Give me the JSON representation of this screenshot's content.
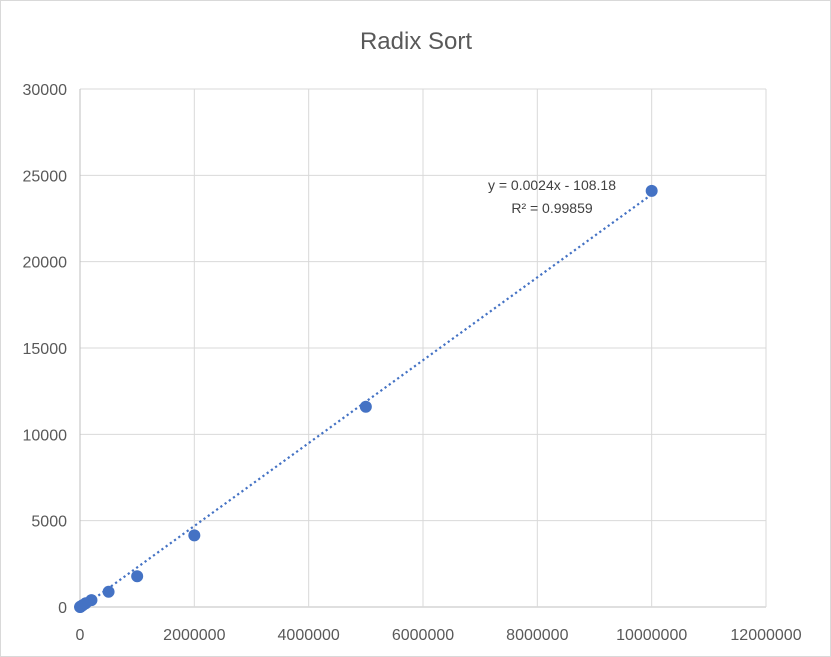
{
  "chart_data": {
    "type": "scatter",
    "title": "Radix Sort",
    "xlabel": "",
    "ylabel": "",
    "xlim": [
      0,
      12000000
    ],
    "ylim": [
      0,
      30000
    ],
    "x_ticks": [
      0,
      2000000,
      4000000,
      6000000,
      8000000,
      10000000,
      12000000
    ],
    "y_ticks": [
      0,
      5000,
      10000,
      15000,
      20000,
      25000,
      30000
    ],
    "x_tick_labels": [
      "0",
      "2000000",
      "4000000",
      "6000000",
      "8000000",
      "10000000",
      "12000000"
    ],
    "y_tick_labels": [
      "0",
      "5000",
      "10000",
      "15000",
      "20000",
      "25000",
      "30000"
    ],
    "grid": true,
    "legend": "none",
    "series": [
      {
        "color": "#4472c4",
        "points": [
          {
            "x": 1000,
            "y": 2
          },
          {
            "x": 5000,
            "y": 10
          },
          {
            "x": 10000,
            "y": 22
          },
          {
            "x": 20000,
            "y": 45
          },
          {
            "x": 50000,
            "y": 110
          },
          {
            "x": 100000,
            "y": 220
          },
          {
            "x": 200000,
            "y": 400
          },
          {
            "x": 500000,
            "y": 880
          },
          {
            "x": 1000000,
            "y": 1780
          },
          {
            "x": 2000000,
            "y": 4150
          },
          {
            "x": 5000000,
            "y": 11600
          },
          {
            "x": 10000000,
            "y": 24100
          }
        ]
      }
    ],
    "trendline": {
      "slope": 0.0024,
      "intercept": -108.18,
      "x_range": [
        100000,
        10000000
      ],
      "equation_label": "y = 0.0024x - 108.18",
      "r2_label": "R² = 0.99859"
    }
  }
}
